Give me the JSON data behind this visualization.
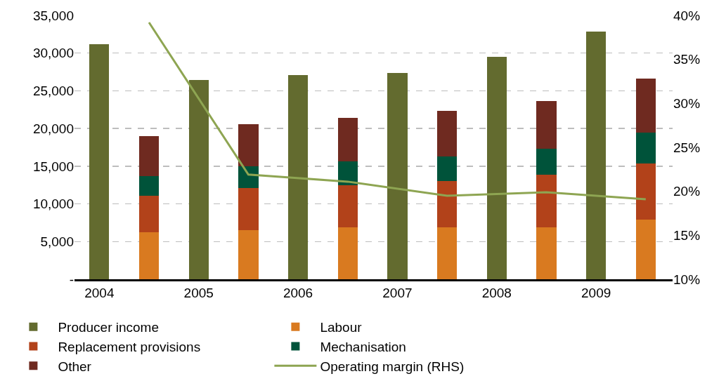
{
  "chart_data": {
    "type": "bar",
    "stacked": true,
    "categories": [
      "2004",
      null,
      "2005",
      null,
      "2006",
      null,
      "2007",
      null,
      "2008",
      null,
      "2009",
      null
    ],
    "series": [
      {
        "name": "Producer income",
        "color": "#636b2f",
        "values": [
          31200,
          null,
          26400,
          null,
          27100,
          null,
          27400,
          null,
          29500,
          null,
          32900,
          null
        ]
      },
      {
        "name": "Labour",
        "color": "#d97a20",
        "values": [
          null,
          6200,
          null,
          6500,
          null,
          6900,
          null,
          6900,
          null,
          6900,
          null,
          7900
        ]
      },
      {
        "name": "Replacement provisions",
        "color": "#b2421a",
        "values": [
          null,
          4900,
          null,
          5600,
          null,
          5600,
          null,
          6100,
          null,
          7000,
          null,
          7500
        ]
      },
      {
        "name": "Mechanisation",
        "color": "#00533a",
        "values": [
          null,
          2600,
          null,
          2900,
          null,
          3100,
          null,
          3300,
          null,
          3400,
          null,
          4100
        ]
      },
      {
        "name": "Other",
        "color": "#6f2a20",
        "values": [
          null,
          5300,
          null,
          5600,
          null,
          5800,
          null,
          6000,
          null,
          6300,
          null,
          7100
        ]
      },
      {
        "name": "Operating margin (RHS)",
        "type": "line",
        "axis": "y2",
        "color": "#8ea552",
        "values": [
          null,
          39.2,
          null,
          21.9,
          null,
          21.1,
          null,
          19.5,
          null,
          19.9,
          null,
          19.1
        ]
      }
    ],
    "ylim": [
      0,
      35000
    ],
    "yticks": [
      {
        "value": 0,
        "label": "-"
      },
      {
        "value": 5000,
        "label": "5,000"
      },
      {
        "value": 10000,
        "label": "10,000"
      },
      {
        "value": 15000,
        "label": "15,000"
      },
      {
        "value": 20000,
        "label": "20,000"
      },
      {
        "value": 25000,
        "label": "25,000"
      },
      {
        "value": 30000,
        "label": "30,000"
      },
      {
        "value": 35000,
        "label": "35,000"
      }
    ],
    "y2lim": [
      10,
      40
    ],
    "y2ticks": [
      {
        "value": 10,
        "label": "10%"
      },
      {
        "value": 15,
        "label": "15%"
      },
      {
        "value": 20,
        "label": "20%"
      },
      {
        "value": 25,
        "label": "25%"
      },
      {
        "value": 30,
        "label": "30%"
      },
      {
        "value": 35,
        "label": "35%"
      },
      {
        "value": 40,
        "label": "40%"
      }
    ],
    "grid": "y",
    "legend": "bottom",
    "marker": "none",
    "line_style": "solid"
  }
}
